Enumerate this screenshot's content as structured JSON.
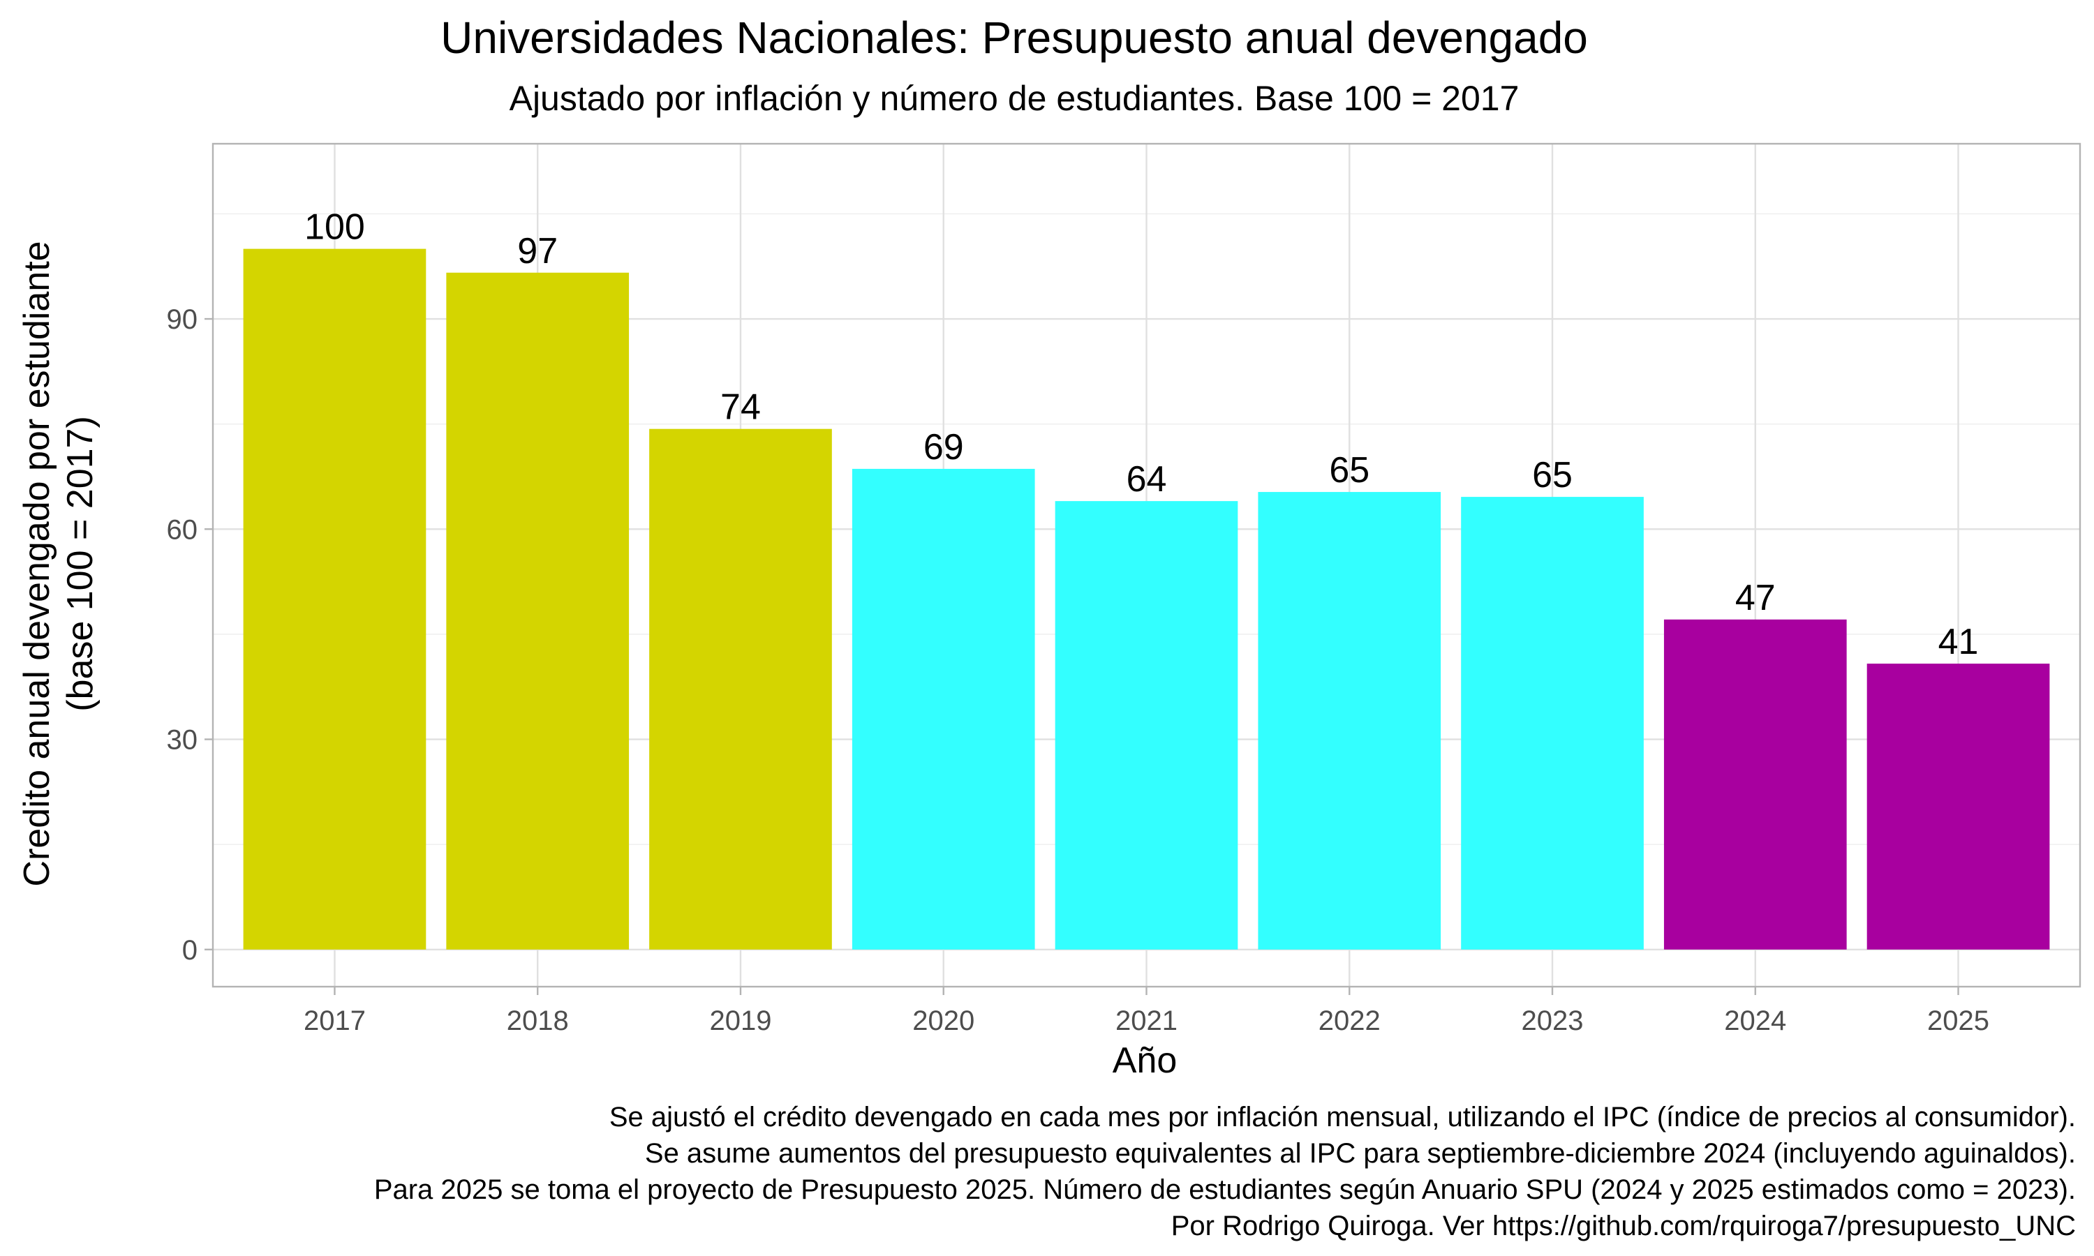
{
  "chart_data": {
    "type": "bar",
    "title": "Universidades Nacionales: Presupuesto anual devengado",
    "subtitle": "Ajustado por inflación y número de estudiantes. Base 100 = 2017",
    "xlabel": "Año",
    "ylabel": [
      "Credito anual devengado por estudiante",
      "(base 100 = 2017)"
    ],
    "categories": [
      "2017",
      "2018",
      "2019",
      "2020",
      "2021",
      "2022",
      "2023",
      "2024",
      "2025"
    ],
    "values": [
      100,
      96.6,
      74.3,
      68.6,
      64.0,
      65.3,
      64.6,
      47.1,
      40.8
    ],
    "data_labels": [
      "100",
      "97",
      "74",
      "69",
      "64",
      "65",
      "65",
      "47",
      "41"
    ],
    "bar_colors": [
      "#d4d500",
      "#d4d500",
      "#d4d500",
      "#33ffff",
      "#33ffff",
      "#33ffff",
      "#33ffff",
      "#a8009f",
      "#a8009f"
    ],
    "yticks": [
      0,
      30,
      60,
      90
    ],
    "ytick_labels": [
      "0",
      "30",
      "60",
      "90"
    ],
    "ylim": [
      -5.3,
      115
    ],
    "grid": true,
    "legend": "none",
    "caption": [
      "Se ajustó el crédito devengado en cada mes por inflación mensual, utilizando el IPC (índice de precios al consumidor).",
      "Se asume aumentos del presupuesto equivalentes al IPC para septiembre-diciembre 2024 (incluyendo aguinaldos).",
      "Para 2025 se toma el proyecto de Presupuesto 2025. Número de estudiantes según Anuario SPU (2024 y 2025 estimados como = 2023).",
      "Por Rodrigo Quiroga. Ver https://github.com/rquiroga7/presupuesto_UNC"
    ]
  }
}
